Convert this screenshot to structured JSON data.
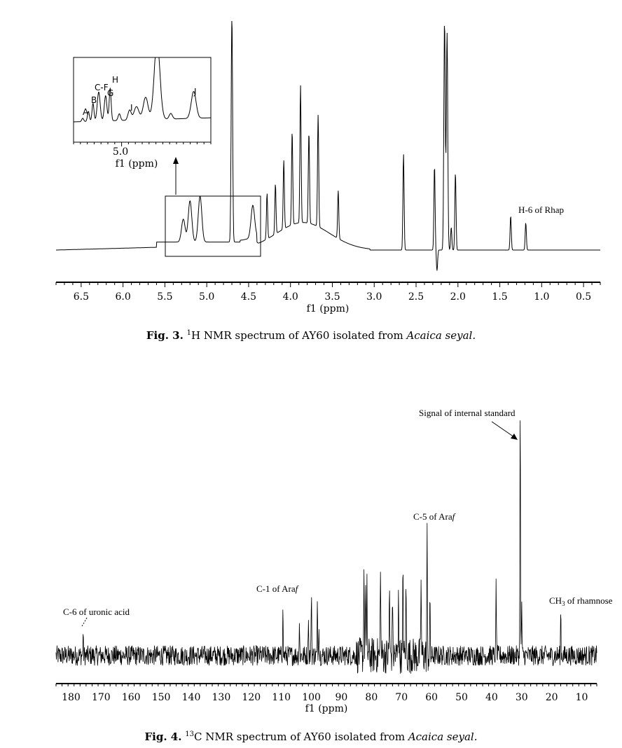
{
  "chart_data": [
    {
      "type": "line",
      "title": "",
      "xlabel": "f1 (ppm)",
      "ylabel": "",
      "xlim": [
        6.8,
        0.3
      ],
      "x_reversed": true,
      "xticks": [
        "6.5",
        "6.0",
        "5.5",
        "5.0",
        "4.5",
        "4.0",
        "3.5",
        "3.0",
        "2.5",
        "2.0",
        "1.5",
        "1.0",
        "0.5"
      ],
      "xtick_values": [
        6.5,
        6.0,
        5.5,
        5.0,
        4.5,
        4.0,
        3.5,
        3.0,
        2.5,
        2.0,
        1.5,
        1.0,
        0.5
      ],
      "ylim": [
        -0.05,
        1.0
      ],
      "series": [
        {
          "peaks": [
            {
              "ppm": 4.7,
              "height": 1.0
            },
            {
              "ppm": 2.16,
              "height": 1.0
            },
            {
              "ppm": 2.13,
              "height": 0.95
            },
            {
              "ppm": 3.88,
              "height": 0.6
            },
            {
              "ppm": 3.67,
              "height": 0.49
            },
            {
              "ppm": 3.78,
              "height": 0.4
            },
            {
              "ppm": 3.98,
              "height": 0.41
            },
            {
              "ppm": 4.08,
              "height": 0.3
            },
            {
              "ppm": 4.18,
              "height": 0.22
            },
            {
              "ppm": 4.28,
              "height": 0.2
            },
            {
              "ppm": 3.43,
              "height": 0.21
            },
            {
              "ppm": 5.2,
              "height": 0.18
            },
            {
              "ppm": 5.08,
              "height": 0.2
            },
            {
              "ppm": 5.28,
              "height": 0.1
            },
            {
              "ppm": 4.45,
              "height": 0.14
            },
            {
              "ppm": 2.65,
              "height": 0.42
            },
            {
              "ppm": 2.28,
              "height": 0.37
            },
            {
              "ppm": 2.03,
              "height": 0.34
            },
            {
              "ppm": 2.08,
              "height": 0.1
            },
            {
              "ppm": 1.37,
              "height": 0.15
            },
            {
              "ppm": 1.19,
              "height": 0.12
            },
            {
              "ppm": 2.25,
              "height": -0.09
            }
          ]
        }
      ],
      "annotations": [
        "H-6 of Rhap"
      ],
      "inset": {
        "xlabel": "f1 (ppm)",
        "xtick": "5.0",
        "peak_letters": [
          "A",
          "B",
          "C-F",
          "G",
          "H",
          "I",
          "J"
        ]
      },
      "caption": {
        "fig": "Fig. 3.",
        "sup": "1",
        "text": "H NMR spectrum of AY60 isolated from ",
        "species": "Acaica seyal."
      }
    },
    {
      "type": "line",
      "title": "",
      "xlabel": "f1 (ppm)",
      "ylabel": "",
      "xlim": [
        185,
        5
      ],
      "x_reversed": true,
      "xticks": [
        "180",
        "170",
        "160",
        "150",
        "140",
        "130",
        "120",
        "110",
        "100",
        "90",
        "80",
        "70",
        "60",
        "50",
        "40",
        "30",
        "20",
        "10"
      ],
      "xtick_values": [
        180,
        170,
        160,
        150,
        140,
        130,
        120,
        110,
        100,
        90,
        80,
        70,
        60,
        50,
        40,
        30,
        20,
        10
      ],
      "ylim": [
        -0.05,
        1.0
      ],
      "series": [
        {
          "peaks": [
            {
              "ppm": 30.5,
              "height": 1.0
            },
            {
              "ppm": 61.5,
              "height": 0.47
            },
            {
              "ppm": 82.5,
              "height": 0.38
            },
            {
              "ppm": 82.0,
              "height": 0.3
            },
            {
              "ppm": 81.5,
              "height": 0.25
            },
            {
              "ppm": 77.0,
              "height": 0.37
            },
            {
              "ppm": 74.0,
              "height": 0.28
            },
            {
              "ppm": 73.0,
              "height": 0.26
            },
            {
              "ppm": 71.0,
              "height": 0.3
            },
            {
              "ppm": 69.5,
              "height": 0.34
            },
            {
              "ppm": 68.5,
              "height": 0.26
            },
            {
              "ppm": 63.5,
              "height": 0.31
            },
            {
              "ppm": 60.5,
              "height": 0.2
            },
            {
              "ppm": 109.5,
              "height": 0.2
            },
            {
              "ppm": 100.0,
              "height": 0.26
            },
            {
              "ppm": 101.0,
              "height": 0.16
            },
            {
              "ppm": 98.0,
              "height": 0.19
            },
            {
              "ppm": 97.5,
              "height": 0.14
            },
            {
              "ppm": 104.0,
              "height": 0.12
            },
            {
              "ppm": 38.5,
              "height": 0.28
            },
            {
              "ppm": 30.0,
              "height": 0.21
            },
            {
              "ppm": 17.0,
              "height": 0.18
            },
            {
              "ppm": 176.0,
              "height": 0.08
            }
          ]
        }
      ],
      "annotations": [
        "Signal of internal standard",
        "C-5 of Araf",
        "C-1 of Araf",
        "C-6 of uronic acid",
        "CH3 of rhamnose"
      ],
      "caption": {
        "fig": "Fig. 4.",
        "sup": "13",
        "text": "C NMR spectrum of AY60 isolated from ",
        "species": "Acaica seyal."
      }
    }
  ],
  "colors": {
    "line": "#000000",
    "background": "#ffffff"
  }
}
